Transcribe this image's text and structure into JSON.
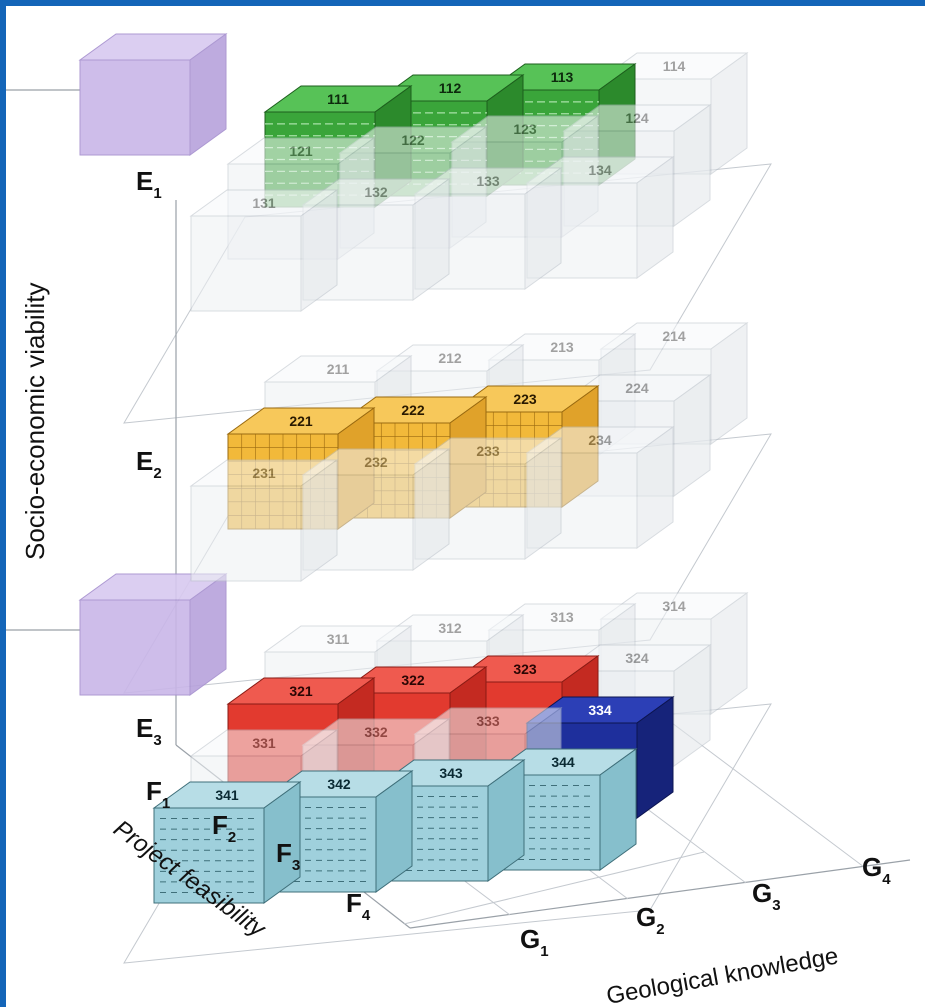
{
  "colors": {
    "frame_blue": "#1465b8",
    "ghost_face": "#eef1f4",
    "ghost_edge": "#b9c0c8",
    "purple": "#c9b6e8",
    "green": "#3aa53a",
    "orange": "#f2b93a",
    "red": "#e23a2f",
    "lightblue": "#9fd0dc",
    "navy": "#1e2f9c"
  },
  "axes": {
    "y_label": "Socio-economic viability",
    "z_label": "Project feasibility",
    "x_label": "Geological knowledge",
    "e_levels": [
      {
        "main": "E",
        "sub": "1"
      },
      {
        "main": "E",
        "sub": "2"
      },
      {
        "main": "E",
        "sub": "3"
      }
    ],
    "f_levels": [
      {
        "main": "F",
        "sub": "1"
      },
      {
        "main": "F",
        "sub": "2"
      },
      {
        "main": "F",
        "sub": "3"
      },
      {
        "main": "F",
        "sub": "4"
      }
    ],
    "g_levels": [
      {
        "main": "G",
        "sub": "1"
      },
      {
        "main": "G",
        "sub": "2"
      },
      {
        "main": "G",
        "sub": "3"
      },
      {
        "main": "G",
        "sub": "4"
      }
    ]
  },
  "cells": [
    {
      "code": "114",
      "e": 1,
      "f": 1,
      "g": 4,
      "style": "ghost"
    },
    {
      "code": "124",
      "e": 1,
      "f": 2,
      "g": 4,
      "style": "ghost"
    },
    {
      "code": "123",
      "e": 1,
      "f": 2,
      "g": 3,
      "style": "ghost"
    },
    {
      "code": "134",
      "e": 1,
      "f": 3,
      "g": 4,
      "style": "ghost"
    },
    {
      "code": "133",
      "e": 1,
      "f": 3,
      "g": 3,
      "style": "ghost"
    },
    {
      "code": "132",
      "e": 1,
      "f": 3,
      "g": 2,
      "style": "ghost"
    },
    {
      "code": "131",
      "e": 1,
      "f": 3,
      "g": 1,
      "style": "ghost"
    },
    {
      "code": "122",
      "e": 1,
      "f": 2,
      "g": 2,
      "style": "ghost"
    },
    {
      "code": "121",
      "e": 1,
      "f": 2,
      "g": 1,
      "style": "ghost"
    },
    {
      "code": "111",
      "e": 1,
      "f": 1,
      "g": 1,
      "style": "green"
    },
    {
      "code": "112",
      "e": 1,
      "f": 1,
      "g": 2,
      "style": "green"
    },
    {
      "code": "113",
      "e": 1,
      "f": 1,
      "g": 3,
      "style": "green"
    },
    {
      "code": "214",
      "e": 2,
      "f": 1,
      "g": 4,
      "style": "ghost"
    },
    {
      "code": "213",
      "e": 2,
      "f": 1,
      "g": 3,
      "style": "ghost"
    },
    {
      "code": "212",
      "e": 2,
      "f": 1,
      "g": 2,
      "style": "ghost"
    },
    {
      "code": "211",
      "e": 2,
      "f": 1,
      "g": 1,
      "style": "ghost"
    },
    {
      "code": "224",
      "e": 2,
      "f": 2,
      "g": 4,
      "style": "ghost"
    },
    {
      "code": "234",
      "e": 2,
      "f": 3,
      "g": 4,
      "style": "ghost"
    },
    {
      "code": "233",
      "e": 2,
      "f": 3,
      "g": 3,
      "style": "ghost"
    },
    {
      "code": "232",
      "e": 2,
      "f": 3,
      "g": 2,
      "style": "ghost"
    },
    {
      "code": "231",
      "e": 2,
      "f": 3,
      "g": 1,
      "style": "ghost"
    },
    {
      "code": "221",
      "e": 2,
      "f": 2,
      "g": 1,
      "style": "orange"
    },
    {
      "code": "222",
      "e": 2,
      "f": 2,
      "g": 2,
      "style": "orange"
    },
    {
      "code": "223",
      "e": 2,
      "f": 2,
      "g": 3,
      "style": "orange"
    },
    {
      "code": "314",
      "e": 3,
      "f": 1,
      "g": 4,
      "style": "ghost"
    },
    {
      "code": "313",
      "e": 3,
      "f": 1,
      "g": 3,
      "style": "ghost"
    },
    {
      "code": "312",
      "e": 3,
      "f": 1,
      "g": 2,
      "style": "ghost"
    },
    {
      "code": "311",
      "e": 3,
      "f": 1,
      "g": 1,
      "style": "ghost"
    },
    {
      "code": "324",
      "e": 3,
      "f": 2,
      "g": 4,
      "style": "ghost"
    },
    {
      "code": "334",
      "e": 3,
      "f": 3,
      "g": 4,
      "style": "navy"
    },
    {
      "code": "333",
      "e": 3,
      "f": 3,
      "g": 3,
      "style": "ghost"
    },
    {
      "code": "332",
      "e": 3,
      "f": 3,
      "g": 2,
      "style": "ghost"
    },
    {
      "code": "331",
      "e": 3,
      "f": 3,
      "g": 1,
      "style": "ghost"
    },
    {
      "code": "321",
      "e": 3,
      "f": 2,
      "g": 1,
      "style": "red"
    },
    {
      "code": "322",
      "e": 3,
      "f": 2,
      "g": 2,
      "style": "red"
    },
    {
      "code": "323",
      "e": 3,
      "f": 2,
      "g": 3,
      "style": "red"
    },
    {
      "code": "341",
      "e": 3,
      "f": 4,
      "g": 1,
      "style": "lightblue"
    },
    {
      "code": "342",
      "e": 3,
      "f": 4,
      "g": 2,
      "style": "lightblue"
    },
    {
      "code": "343",
      "e": 3,
      "f": 4,
      "g": 3,
      "style": "lightblue"
    },
    {
      "code": "344",
      "e": 3,
      "f": 4,
      "g": 4,
      "style": "lightblue"
    }
  ],
  "purple_markers": [
    {
      "e": 1,
      "style": "purple"
    },
    {
      "e": 3,
      "style": "purple"
    }
  ]
}
